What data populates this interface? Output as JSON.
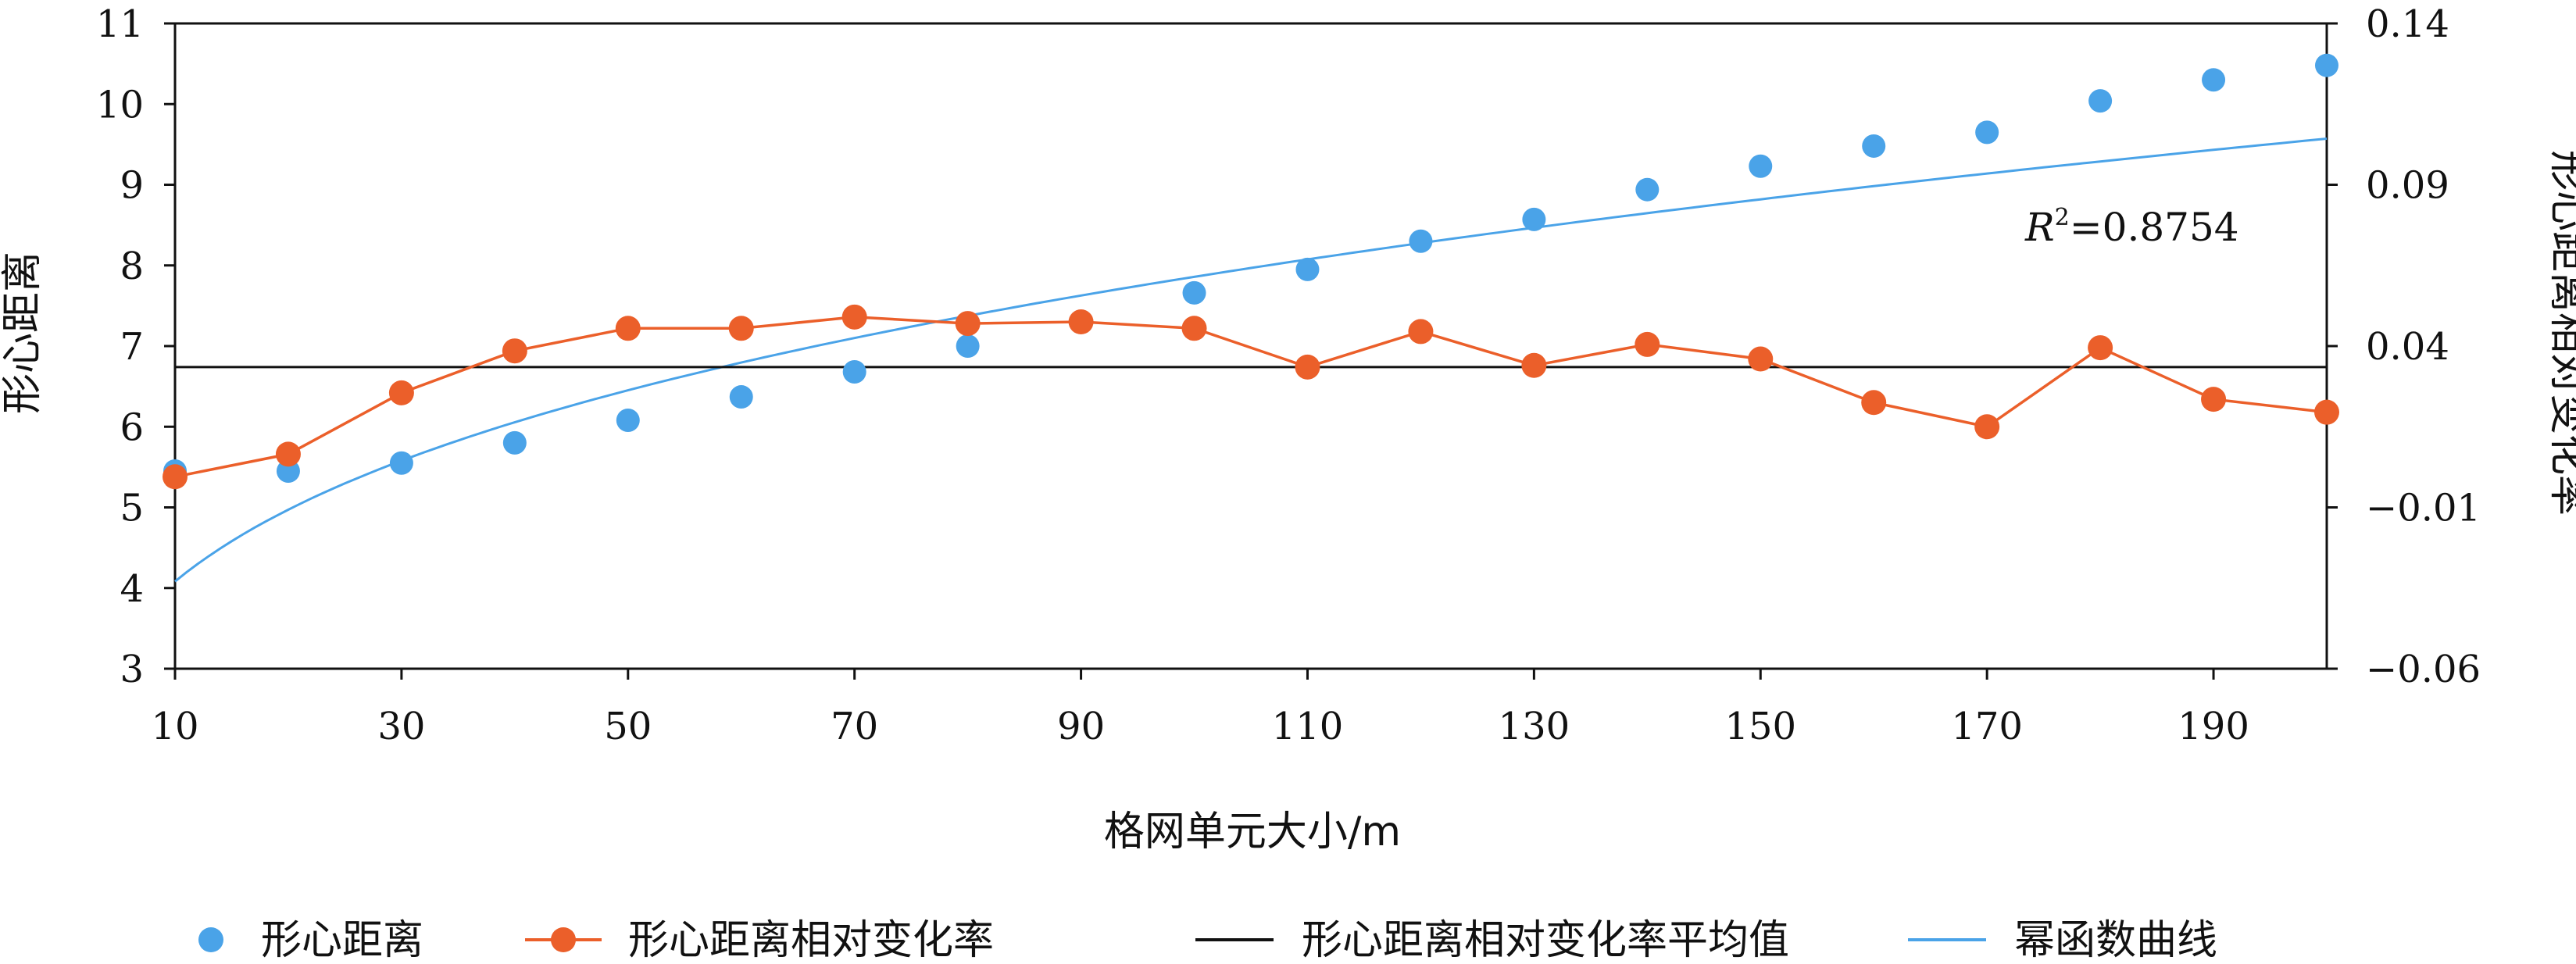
{
  "chart_data": {
    "type": "combo",
    "x_axis": {
      "label": "格网单元大小/m",
      "min": 10,
      "max": 200,
      "ticks": [
        10,
        30,
        50,
        70,
        90,
        110,
        130,
        150,
        170,
        190
      ]
    },
    "y_left": {
      "label": "形心距离",
      "min": 3,
      "max": 11,
      "ticks": [
        3,
        4,
        5,
        6,
        7,
        8,
        9,
        10,
        11
      ]
    },
    "y_right": {
      "label": "形心距离相对变化率",
      "min": -0.06,
      "max": 0.14,
      "ticks": [
        -0.06,
        -0.01,
        0.04,
        0.09,
        0.14
      ],
      "tick_labels": [
        "−0.06",
        "−0.01",
        "0.04",
        "0.09",
        "0.14"
      ]
    },
    "x": [
      10,
      20,
      30,
      40,
      50,
      60,
      70,
      80,
      90,
      100,
      110,
      120,
      130,
      140,
      150,
      160,
      170,
      180,
      190,
      200
    ],
    "series": [
      {
        "name": "形心距离",
        "kind": "scatter",
        "axis": "left",
        "color": "#4AA3E8",
        "values": [
          5.45,
          5.45,
          5.55,
          5.8,
          6.08,
          6.37,
          6.68,
          7.0,
          7.3,
          7.66,
          7.95,
          8.3,
          8.57,
          8.94,
          9.23,
          9.48,
          9.65,
          10.04,
          10.3,
          10.48
        ]
      },
      {
        "name": "形心距离相对变化率",
        "kind": "line-marker",
        "axis": "right",
        "color": "#EB5F2A",
        "values": [
          -0.0005,
          0.0065,
          0.0255,
          0.0385,
          0.0455,
          0.0455,
          0.049,
          0.047,
          0.0475,
          0.0455,
          0.0335,
          0.0445,
          0.034,
          0.0405,
          0.036,
          0.0225,
          0.015,
          0.0395,
          0.0235,
          0.0195
        ]
      },
      {
        "name": "形心距离相对变化率平均值",
        "kind": "hline",
        "axis": "right",
        "color": "#111111",
        "value": 0.0335
      },
      {
        "name": "幂函数曲线",
        "kind": "power-fit",
        "axis": "left",
        "color": "#4AA3E8",
        "fit": {
          "a": 2.12,
          "b": 0.2845,
          "x_offset": 0
        },
        "r2_prefix": "R",
        "r2_sup": "2",
        "r2_value": "=0.8754"
      }
    ],
    "legend": {
      "position": "bottom",
      "items": [
        "形心距离",
        "形心距离相对变化率",
        "形心距离相对变化率平均值",
        "幂函数曲线"
      ]
    },
    "grid": false
  }
}
